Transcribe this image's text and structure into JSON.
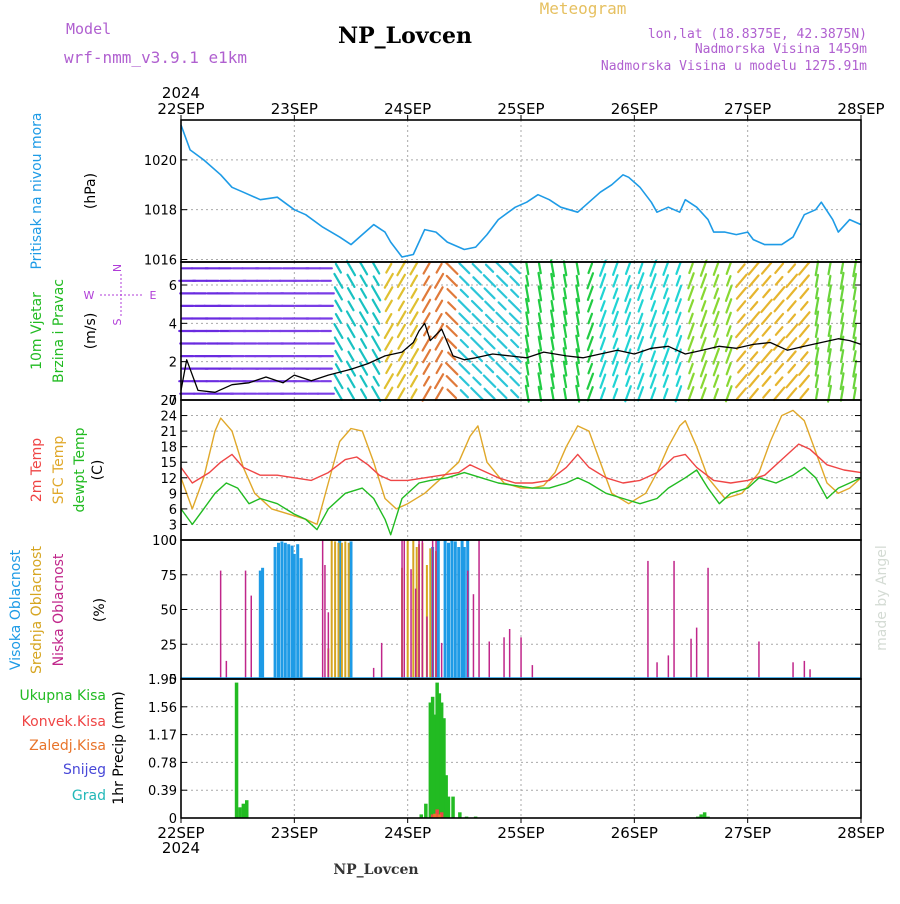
{
  "header": {
    "model_label": "Model",
    "model_value": "wrf-nmm_v3.9.1  e1km",
    "title": "NP_Lovcen",
    "meteogram_label": "Meteogram",
    "location": "lon,lat (18.8375E, 42.3875N)",
    "elevation": "Nadmorska Visina 1459m",
    "model_elevation": "Nadmorska Visina u modelu 1275.91m",
    "year_top": "2024",
    "year_bottom": "2024",
    "footer_station": "NP_Lovcen",
    "watermark": "made by Angel"
  },
  "colors": {
    "pressure": "#1e9be6",
    "wind_label": "#22bb22",
    "wind_dir_label": "#b03cd8",
    "temp2m": "#ef4545",
    "sfc": "#e0a82a",
    "dewpt": "#22bb22",
    "cloud_high": "#1e9be6",
    "cloud_mid": "#d6a520",
    "cloud_low": "#c0268a",
    "precip_total": "#22bb22",
    "precip_conv": "#ef4545",
    "precip_frozen": "#e8742a",
    "precip_snow": "#4848d8",
    "precip_grad": "#22b8b8"
  },
  "dates": [
    "22SEP",
    "23SEP",
    "24SEP",
    "25SEP",
    "26SEP",
    "27SEP",
    "28SEP"
  ],
  "chart_data": [
    {
      "type": "line",
      "name": "pressure",
      "ylabel": [
        "Pritisak na nivou mora",
        "(hPa)"
      ],
      "yticks": [
        1016,
        1018,
        1020
      ],
      "ylim": [
        1015.9,
        1021.6
      ],
      "x_unit": "days since 22SEP 00Z",
      "series": [
        {
          "name": "Pritisak na nivou mora",
          "x": [
            0,
            0.08,
            0.2,
            0.35,
            0.45,
            0.55,
            0.7,
            0.85,
            1.0,
            1.1,
            1.25,
            1.4,
            1.5,
            1.6,
            1.7,
            1.8,
            1.85,
            1.95,
            2.05,
            2.15,
            2.25,
            2.35,
            2.5,
            2.6,
            2.7,
            2.8,
            2.95,
            3.05,
            3.15,
            3.25,
            3.35,
            3.5,
            3.6,
            3.7,
            3.8,
            3.9,
            3.95,
            4.05,
            4.15,
            4.2,
            4.3,
            4.4,
            4.45,
            4.55,
            4.65,
            4.7,
            4.8,
            4.9,
            5.0,
            5.05,
            5.15,
            5.3,
            5.4,
            5.5,
            5.6,
            5.65,
            5.75,
            5.8,
            5.9,
            6.0
          ],
          "values": [
            1021.4,
            1020.4,
            1020.0,
            1019.4,
            1018.9,
            1018.7,
            1018.4,
            1018.5,
            1018.0,
            1017.8,
            1017.3,
            1016.9,
            1016.6,
            1017.0,
            1017.4,
            1017.1,
            1016.7,
            1016.1,
            1016.2,
            1017.2,
            1017.1,
            1016.7,
            1016.4,
            1016.5,
            1017.0,
            1017.6,
            1018.1,
            1018.3,
            1018.6,
            1018.4,
            1018.1,
            1017.9,
            1018.3,
            1018.7,
            1019.0,
            1019.4,
            1019.3,
            1018.9,
            1018.3,
            1017.9,
            1018.1,
            1017.9,
            1018.4,
            1018.1,
            1017.6,
            1017.1,
            1017.1,
            1017.0,
            1017.1,
            1016.8,
            1016.6,
            1016.6,
            1016.9,
            1017.8,
            1018.0,
            1018.3,
            1017.6,
            1017.1,
            1017.6,
            1017.4
          ]
        }
      ]
    },
    {
      "type": "line",
      "name": "wind",
      "ylabel": [
        "10m Vjetar",
        "Brzina i Pravac",
        "(m/s)"
      ],
      "direction_legend": [
        "N",
        "W",
        "E",
        "S"
      ],
      "yticks": [
        0,
        2,
        4,
        6
      ],
      "ylim": [
        0,
        7.2
      ],
      "series": [
        {
          "name": "10m Vjetar",
          "x": [
            0,
            0.05,
            0.15,
            0.3,
            0.45,
            0.6,
            0.75,
            0.9,
            1.0,
            1.15,
            1.3,
            1.5,
            1.65,
            1.8,
            1.95,
            2.05,
            2.1,
            2.15,
            2.2,
            2.3,
            2.4,
            2.5,
            2.6,
            2.75,
            2.9,
            3.05,
            3.2,
            3.4,
            3.55,
            3.7,
            3.85,
            4.0,
            4.15,
            4.3,
            4.45,
            4.6,
            4.75,
            4.9,
            5.05,
            5.2,
            5.35,
            5.5,
            5.65,
            5.8,
            5.9,
            6.0
          ],
          "values": [
            0.5,
            2.1,
            0.5,
            0.4,
            0.8,
            0.9,
            1.2,
            0.9,
            1.3,
            1.0,
            1.3,
            1.6,
            1.9,
            2.3,
            2.5,
            3.0,
            3.6,
            4.0,
            3.1,
            3.7,
            2.3,
            2.1,
            2.2,
            2.4,
            2.3,
            2.2,
            2.5,
            2.3,
            2.2,
            2.4,
            2.6,
            2.4,
            2.7,
            2.8,
            2.4,
            2.6,
            2.8,
            2.7,
            2.9,
            3.0,
            2.6,
            2.8,
            3.0,
            3.2,
            3.1,
            2.9
          ]
        }
      ]
    },
    {
      "type": "line",
      "name": "temperature",
      "ylabel": [
        "2m Temp",
        "SFC Temp",
        "dewpt Temp",
        "(C)"
      ],
      "yticks": [
        0,
        3,
        6,
        9,
        12,
        15,
        18,
        21,
        24,
        27
      ],
      "ylim": [
        0,
        27
      ],
      "series": [
        {
          "name": "2m Temp",
          "x": [
            0,
            0.1,
            0.25,
            0.35,
            0.45,
            0.55,
            0.7,
            0.85,
            1.0,
            1.15,
            1.3,
            1.45,
            1.55,
            1.65,
            1.75,
            1.85,
            2.0,
            2.15,
            2.3,
            2.45,
            2.55,
            2.65,
            2.8,
            2.95,
            3.1,
            3.25,
            3.4,
            3.5,
            3.6,
            3.75,
            3.9,
            4.05,
            4.2,
            4.35,
            4.45,
            4.55,
            4.7,
            4.85,
            5.0,
            5.15,
            5.3,
            5.45,
            5.55,
            5.7,
            5.85,
            6.0
          ],
          "values": [
            14,
            11,
            13,
            15,
            16.5,
            14,
            12.5,
            12.5,
            12,
            11.5,
            13,
            15.5,
            16,
            14.5,
            12.5,
            11.5,
            11.5,
            12,
            12.5,
            13,
            14.5,
            13.5,
            12,
            11,
            11,
            11.5,
            14,
            16.5,
            14,
            12,
            11,
            11.5,
            13,
            16,
            16.5,
            14,
            11.5,
            11,
            11.5,
            12.5,
            15.5,
            18.5,
            17.5,
            14.5,
            13.5,
            13
          ]
        },
        {
          "name": "SFC Temp",
          "x": [
            0,
            0.1,
            0.2,
            0.3,
            0.35,
            0.45,
            0.55,
            0.65,
            0.8,
            0.95,
            1.1,
            1.2,
            1.3,
            1.4,
            1.5,
            1.6,
            1.7,
            1.8,
            1.9,
            2.0,
            2.15,
            2.3,
            2.45,
            2.55,
            2.62,
            2.7,
            2.85,
            3.0,
            3.1,
            3.2,
            3.3,
            3.4,
            3.5,
            3.6,
            3.7,
            3.8,
            3.95,
            4.1,
            4.2,
            4.3,
            4.4,
            4.45,
            4.55,
            4.65,
            4.8,
            4.95,
            5.1,
            5.2,
            5.3,
            5.4,
            5.5,
            5.6,
            5.7,
            5.8,
            5.9,
            6.0
          ],
          "values": [
            12,
            6,
            12,
            21,
            23.5,
            21,
            14,
            9,
            6,
            5,
            4,
            3,
            11,
            19,
            21.5,
            21,
            15,
            8,
            6,
            7,
            9,
            12,
            15,
            20,
            22,
            15,
            11,
            10,
            10,
            10.5,
            13,
            18,
            22,
            21,
            15,
            9,
            7,
            9,
            13,
            18,
            22,
            23,
            18,
            12,
            8,
            9,
            13,
            19,
            24,
            25,
            23,
            17,
            11,
            9,
            10,
            12
          ]
        },
        {
          "name": "dewpt Temp",
          "x": [
            0,
            0.1,
            0.2,
            0.3,
            0.4,
            0.5,
            0.6,
            0.7,
            0.85,
            1.0,
            1.1,
            1.2,
            1.3,
            1.45,
            1.6,
            1.7,
            1.8,
            1.85,
            1.95,
            2.1,
            2.2,
            2.35,
            2.5,
            2.65,
            2.8,
            2.95,
            3.1,
            3.25,
            3.4,
            3.5,
            3.6,
            3.75,
            3.9,
            4.05,
            4.2,
            4.3,
            4.45,
            4.55,
            4.65,
            4.75,
            4.85,
            5.0,
            5.1,
            5.25,
            5.4,
            5.5,
            5.6,
            5.7,
            5.8,
            5.9,
            6.0
          ],
          "values": [
            6,
            3,
            6,
            9,
            11,
            10,
            7,
            8,
            7,
            5,
            4,
            2,
            6,
            9,
            10,
            8,
            4,
            1,
            8,
            11,
            11.5,
            12,
            13,
            12,
            11,
            10.5,
            10,
            10,
            11,
            12,
            11,
            9,
            8,
            7,
            8,
            10,
            12,
            13.5,
            10,
            7,
            9,
            10,
            12,
            11,
            12.5,
            14,
            12,
            8,
            10,
            11,
            12
          ]
        }
      ]
    },
    {
      "type": "bar",
      "name": "clouds",
      "ylabel": [
        "Visoka Oblacnost",
        "Srednja Oblacnost",
        "Niska Oblacnost",
        "(%)"
      ],
      "yticks": [
        0,
        25,
        50,
        75,
        100
      ],
      "ylim": [
        0,
        100
      ],
      "series": [
        {
          "name": "Visoka Oblacnost",
          "x": [
            0.7,
            0.72,
            0.83,
            0.86,
            0.89,
            0.92,
            0.95,
            0.98,
            1.0,
            1.03,
            1.06,
            1.4,
            1.5,
            2.22,
            2.27,
            2.33,
            2.36,
            2.39,
            2.42,
            2.45,
            2.48,
            2.5,
            2.53
          ],
          "values": [
            78,
            80,
            95,
            98,
            99,
            98,
            97,
            96,
            90,
            97,
            87,
            100,
            99,
            95,
            100,
            100,
            98,
            100,
            99,
            95,
            100,
            95,
            100
          ]
        },
        {
          "name": "Srednja Oblacnost",
          "x": [
            1.3,
            1.33,
            1.36,
            1.39,
            1.42,
            1.45,
            1.48,
            1.95,
            2.0,
            2.05,
            2.08,
            2.1,
            2.13,
            2.17,
            2.2,
            2.25
          ],
          "values": [
            22,
            100,
            99,
            98,
            98,
            99,
            98,
            80,
            100,
            100,
            95,
            97,
            98,
            82,
            94,
            92
          ]
        },
        {
          "name": "Niska Oblacnost",
          "x": [
            0.35,
            0.4,
            0.57,
            0.62,
            1.25,
            1.27,
            1.3,
            1.7,
            1.77,
            1.95,
            1.97,
            2.03,
            2.07,
            2.1,
            2.13,
            2.17,
            2.22,
            2.25,
            2.3,
            2.53,
            2.58,
            2.63,
            2.72,
            2.85,
            2.9,
            3.0,
            3.1,
            4.12,
            4.2,
            4.3,
            4.35,
            4.5,
            4.55,
            4.65,
            5.1,
            5.4,
            5.5,
            5.55
          ],
          "values": [
            78,
            13,
            78,
            60,
            100,
            82,
            48,
            8,
            26,
            100,
            100,
            79,
            65,
            100,
            100,
            45,
            100,
            100,
            26,
            78,
            61,
            100,
            27,
            30,
            36,
            30,
            10,
            85,
            12,
            17,
            85,
            29,
            37,
            80,
            27,
            12,
            13,
            7
          ]
        }
      ]
    },
    {
      "type": "bar",
      "name": "precipitation",
      "ylabel": [
        "1hr Precip",
        "(mm)"
      ],
      "legend": [
        "Ukupna Kisa",
        "Konvek.Kisa",
        "Zaledj.Kisa",
        "Snijeg",
        "Grad"
      ],
      "yticks": [
        0,
        0.39,
        0.78,
        1.17,
        1.56,
        1.95
      ],
      "ylim": [
        0,
        1.95
      ],
      "series": [
        {
          "name": "Ukupna Kisa",
          "x": [
            0.49,
            0.52,
            0.55,
            0.58,
            2.12,
            2.16,
            2.2,
            2.22,
            2.24,
            2.26,
            2.28,
            2.3,
            2.32,
            2.34,
            2.36,
            2.4,
            2.46,
            2.52,
            2.6,
            4.56,
            4.59,
            4.62,
            4.65
          ],
          "values": [
            1.9,
            0.15,
            0.2,
            0.25,
            0.05,
            0.2,
            1.62,
            1.7,
            1.45,
            1.9,
            1.75,
            1.62,
            1.4,
            0.6,
            0.3,
            0.3,
            0.08,
            0.02,
            0.02,
            0.02,
            0.05,
            0.08,
            0.02
          ]
        },
        {
          "name": "Konvek.Kisa",
          "x": [
            2.22,
            2.26,
            2.3
          ],
          "values": [
            0.05,
            0.12,
            0.08
          ]
        },
        {
          "name": "Zaledj.Kisa",
          "x": [
            2.24,
            2.28
          ],
          "values": [
            0.06,
            0.05
          ]
        }
      ]
    }
  ]
}
